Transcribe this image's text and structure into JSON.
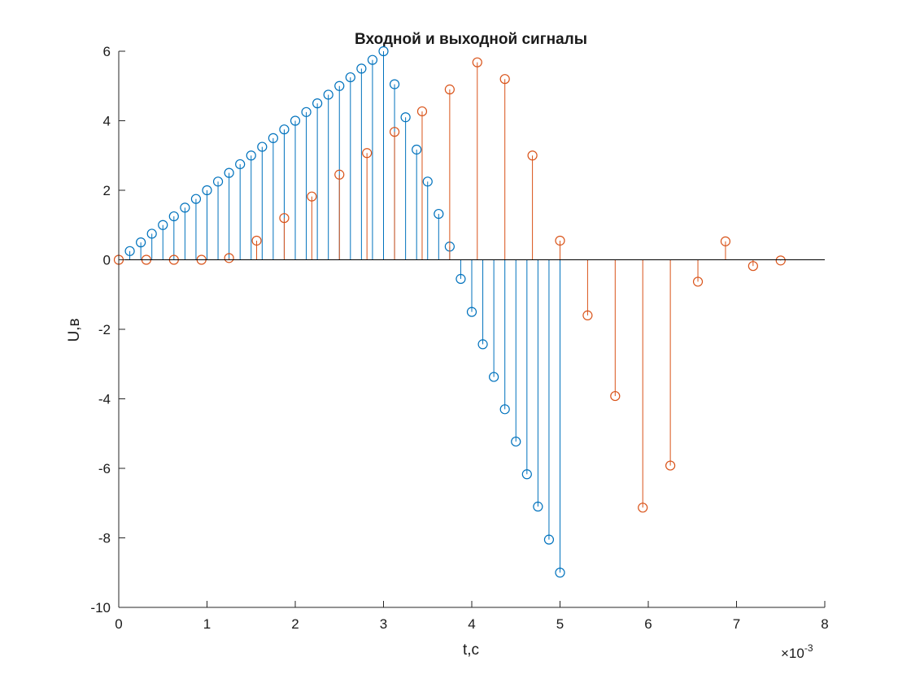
{
  "chart_data": {
    "type": "stem",
    "title": "Входной и выходной сигналы",
    "xlabel": "t,c",
    "ylabel": "U,в",
    "x_multiplier": "×10",
    "x_multiplier_exp": "-3",
    "xlim": [
      0,
      0.008
    ],
    "ylim": [
      -10,
      6
    ],
    "x_ticks": [
      0,
      1,
      2,
      3,
      4,
      5,
      6,
      7,
      8
    ],
    "y_ticks": [
      -10,
      -8,
      -6,
      -4,
      -2,
      0,
      2,
      4,
      6
    ],
    "grid": false,
    "series": [
      {
        "color": "#0072BD",
        "x": [
          0.000125,
          0.00025,
          0.000375,
          0.0005,
          0.000625,
          0.00075,
          0.000875,
          0.001,
          0.001125,
          0.00125,
          0.001375,
          0.0015,
          0.001625,
          0.00175,
          0.001875,
          0.002,
          0.002125,
          0.00225,
          0.002375,
          0.0025,
          0.002625,
          0.00275,
          0.002875,
          0.003,
          0.003125,
          0.00325,
          0.003375,
          0.0035,
          0.003625,
          0.00375,
          0.003875,
          0.004,
          0.004125,
          0.00425,
          0.004375,
          0.0045,
          0.004625,
          0.00475,
          0.004875,
          0.005
        ],
        "y": [
          0.25,
          0.5,
          0.75,
          1.0,
          1.25,
          1.5,
          1.75,
          2.0,
          2.25,
          2.5,
          2.75,
          3.0,
          3.25,
          3.5,
          3.75,
          4.0,
          4.25,
          4.5,
          4.75,
          5.0,
          5.25,
          5.5,
          5.75,
          6.0,
          5.05,
          4.1,
          3.17,
          2.25,
          1.32,
          0.38,
          -0.55,
          -1.5,
          -2.43,
          -3.37,
          -4.3,
          -5.23,
          -6.17,
          -7.1,
          -8.05,
          -9.0
        ]
      },
      {
        "color": "#D95319",
        "x": [
          0,
          0.0003125,
          0.000625,
          0.0009375,
          0.00125,
          0.0015625,
          0.001875,
          0.0021875,
          0.0025,
          0.0028125,
          0.003125,
          0.0034375,
          0.00375,
          0.0040625,
          0.004375,
          0.0046875,
          0.005,
          0.0053125,
          0.005625,
          0.0059375,
          0.00625,
          0.0065625,
          0.006875,
          0.0071875,
          0.0075
        ],
        "y": [
          0.0,
          0.0,
          0.0,
          0.0,
          0.05,
          0.55,
          1.2,
          1.82,
          2.45,
          3.07,
          3.68,
          4.27,
          4.9,
          5.68,
          5.2,
          3.0,
          0.55,
          -1.6,
          -3.92,
          -7.13,
          -5.92,
          -0.63,
          0.53,
          -0.18,
          -0.02
        ]
      }
    ]
  }
}
